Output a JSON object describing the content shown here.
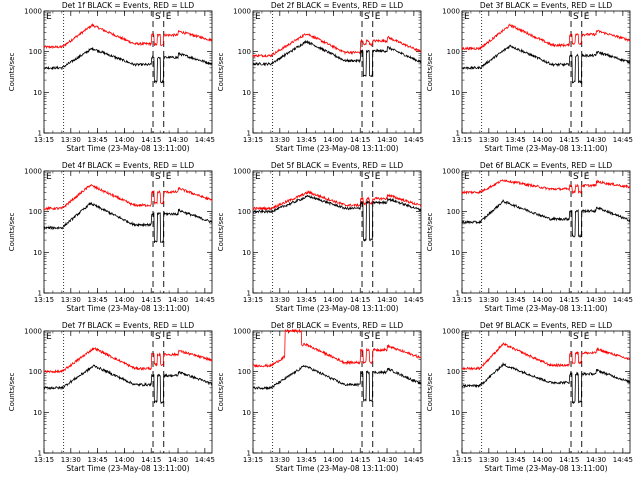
{
  "chart_data": {
    "type": "line",
    "y_scale": "log",
    "ylim": [
      1,
      1000
    ],
    "y_ticks": [
      1,
      10,
      100,
      1000
    ],
    "y_tick_labels": [
      "1",
      "10",
      "100",
      "1000"
    ],
    "x_range_minutes": [
      "13:15",
      "14:49"
    ],
    "x_tick_labels": [
      "13:15",
      "13:30",
      "13:45",
      "14:00",
      "14:15",
      "14:30",
      "14:45"
    ],
    "xlabel": "Start Time (23-May-08 13:11:00)",
    "ylabel": "Counts/sec",
    "grid": false,
    "marker_lines": {
      "dotted": [
        "13:26"
      ],
      "dashed": [
        "14:16",
        "14:22"
      ]
    },
    "marker_labels": [
      {
        "text": "E",
        "time": "13:15"
      },
      {
        "text": "S",
        "time": "14:16"
      },
      {
        "text": "E",
        "time": "14:22"
      }
    ],
    "series_colors": {
      "black": "#000000",
      "red": "#ff0000"
    },
    "panels": [
      {
        "title": "Det 1f BLACK = Events, RED = LLD",
        "black": {
          "base": 40,
          "peak": 120,
          "post": 90,
          "peak_time": "13:42",
          "end": 50,
          "dip": 18
        },
        "red": {
          "base": 130,
          "peak": 450,
          "post": 320,
          "peak_time": "13:42",
          "end": 190,
          "dip": 150
        }
      },
      {
        "title": "Det 2f BLACK = Events, RED = LLD",
        "black": {
          "base": 50,
          "peak": 180,
          "post": 130,
          "peak_time": "13:45",
          "end": 55,
          "dip": 25
        },
        "red": {
          "base": 80,
          "peak": 280,
          "post": 230,
          "peak_time": "13:45",
          "end": 100,
          "dip": 150
        }
      },
      {
        "title": "Det 3f BLACK = Events, RED = LLD",
        "black": {
          "base": 40,
          "peak": 140,
          "post": 100,
          "peak_time": "13:42",
          "end": 55,
          "dip": 18
        },
        "red": {
          "base": 120,
          "peak": 450,
          "post": 330,
          "peak_time": "13:42",
          "end": 190,
          "dip": 160
        }
      },
      {
        "title": "Det 4f BLACK = Events, RED = LLD",
        "black": {
          "base": 40,
          "peak": 160,
          "post": 110,
          "peak_time": "13:41",
          "end": 55,
          "dip": 18
        },
        "red": {
          "base": 120,
          "peak": 450,
          "post": 380,
          "peak_time": "13:41",
          "end": 190,
          "dip": 160
        }
      },
      {
        "title": "Det 5f BLACK = Events, RED = LLD",
        "black": {
          "base": 100,
          "peak": 240,
          "post": 210,
          "peak_time": "13:46",
          "end": 110,
          "dip": 20
        },
        "red": {
          "base": 120,
          "peak": 300,
          "post": 260,
          "peak_time": "13:46",
          "end": 140,
          "dip": 160
        }
      },
      {
        "title": "Det 6f BLACK = Events, RED = LLD",
        "black": {
          "base": 55,
          "peak": 180,
          "post": 130,
          "peak_time": "13:38",
          "end": 60,
          "dip": 25
        },
        "red": {
          "base": 300,
          "peak": 600,
          "post": 550,
          "peak_time": "13:38",
          "end": 400,
          "dip": 300
        }
      },
      {
        "title": "Det 7f BLACK = Events, RED = LLD",
        "black": {
          "base": 40,
          "peak": 140,
          "post": 100,
          "peak_time": "13:43",
          "end": 50,
          "dip": 18
        },
        "red": {
          "base": 100,
          "peak": 380,
          "post": 330,
          "peak_time": "13:43",
          "end": 190,
          "dip": 150
        }
      },
      {
        "title": "Det 8f BLACK = Events, RED = LLD",
        "black": {
          "base": 40,
          "peak": 140,
          "post": 120,
          "peak_time": "13:44",
          "end": 50,
          "dip": 20
        },
        "red": {
          "base": 140,
          "peak": 480,
          "post": 430,
          "peak_time": "13:44",
          "end": 220,
          "dip": 170,
          "spike": [
            1000,
            "13:33",
            "13:42"
          ]
        }
      },
      {
        "title": "Det 9f BLACK = Events, RED = LLD",
        "black": {
          "base": 45,
          "peak": 150,
          "post": 110,
          "peak_time": "13:38",
          "end": 55,
          "dip": 18
        },
        "red": {
          "base": 120,
          "peak": 480,
          "post": 360,
          "peak_time": "13:38",
          "end": 200,
          "dip": 170
        }
      }
    ]
  }
}
